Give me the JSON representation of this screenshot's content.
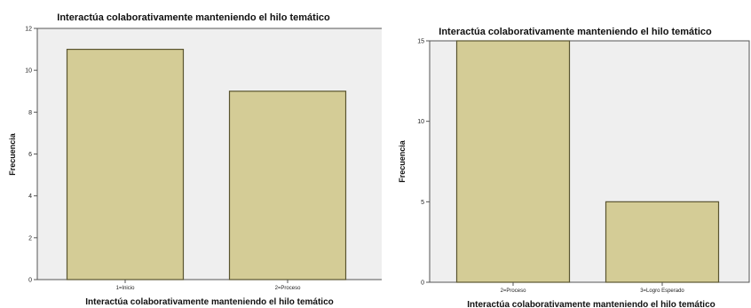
{
  "chart_data": [
    {
      "type": "bar",
      "title": "Interactúa colaborativamente manteniendo el hilo temático",
      "xlabel": "Interactúa colaborativamente manteniendo el hilo temático",
      "ylabel": "Frecuencia",
      "categories": [
        "1=Inicio",
        "2=Proceso"
      ],
      "values": [
        11,
        9
      ],
      "ylim": [
        0,
        12
      ],
      "yticks": [
        0,
        2,
        4,
        6,
        8,
        10,
        12
      ],
      "grid": false,
      "colors": {
        "bar": "#d4cc96",
        "bar_stroke": "#5a5530",
        "plot_bg": "#efefef"
      }
    },
    {
      "type": "bar",
      "title": "Interactúa colaborativamente manteniendo el hilo temático",
      "xlabel": "Interactúa colaborativamente manteniendo el hilo temático",
      "ylabel": "Frecuencia",
      "categories": [
        "2=Proceso",
        "3=Logro Esperado"
      ],
      "values": [
        15,
        5
      ],
      "ylim": [
        0,
        15
      ],
      "yticks": [
        0,
        5,
        10,
        15
      ],
      "grid": false,
      "colors": {
        "bar": "#d4cc96",
        "bar_stroke": "#5a5530",
        "plot_bg": "#efefef"
      }
    }
  ]
}
